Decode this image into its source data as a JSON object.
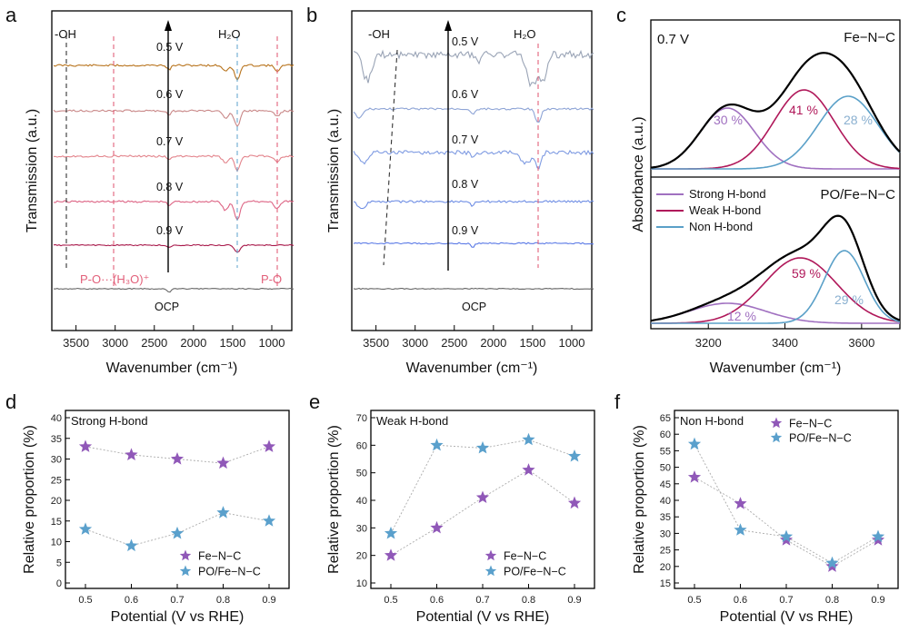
{
  "panel_letters": {
    "a": "a",
    "b": "b",
    "c": "c",
    "d": "d",
    "e": "e",
    "f": "f"
  },
  "panel_a": {
    "xlabel": "Wavenumber (cm⁻¹)",
    "ylabel": "Transmission (a.u.)",
    "xticks": [
      "3500",
      "3000",
      "2500",
      "2000",
      "1500",
      "1000"
    ],
    "band_oh": "-OH",
    "band_h2o": "H₂O",
    "band_po_h3o": "P-O···(H₃O)⁺",
    "band_po": "P-O",
    "potentials": [
      "0.5 V",
      "0.6 V",
      "0.7 V",
      "0.8 V",
      "0.9 V"
    ],
    "ocp": "OCP",
    "colors": {
      "c05": "#b8741e",
      "c06": "#c98888",
      "c07": "#e3848c",
      "c08": "#dd6585",
      "c09": "#a8184a",
      "ocp": "#666666",
      "dashOH": "#333333",
      "dashRed": "#e2607a"
    }
  },
  "panel_b": {
    "xlabel": "Wavenumber (cm⁻¹)",
    "ylabel": "Transmission (a.u.)",
    "xticks": [
      "3500",
      "3000",
      "2500",
      "2000",
      "1500",
      "1000"
    ],
    "band_oh": "-OH",
    "band_h2o": "H₂O",
    "potentials": [
      "0.5 V",
      "0.6 V",
      "0.7 V",
      "0.8 V",
      "0.9 V"
    ],
    "ocp": "OCP",
    "colors": {
      "c05": "#9aa4b6",
      "c06": "#8ea4d6",
      "c07": "#7f9be2",
      "c08": "#6f8ee4",
      "c09": "#5b7ae6",
      "ocp": "#666666"
    }
  },
  "panel_c": {
    "potential": "0.7 V",
    "top_title": "Fe−N−C",
    "bottom_title": "PO/Fe−N−C",
    "ylabel": "Absorbance (a.u.)",
    "xlabel": "Wavenumber (cm⁻¹)",
    "xticks": [
      "3200",
      "3400",
      "3600"
    ],
    "legend": [
      "Strong H-bond",
      "Weak H-bond",
      "Non H-bond"
    ],
    "top_pct": [
      "30 %",
      "41 %",
      "28 %"
    ],
    "bottom_pct": [
      "12 %",
      "59 %",
      "29 %"
    ],
    "colors": {
      "strong": "#a070c0",
      "weak": "#b0185a",
      "non": "#5aa0c8"
    }
  },
  "chart_data": [
    {
      "panel": "d",
      "type": "scatter",
      "title": "Strong H-bond",
      "xlabel": "Potential (V vs RHE)",
      "ylabel": "Relative proportion (%)",
      "categories": [
        "0.5",
        "0.6",
        "0.7",
        "0.8",
        "0.9"
      ],
      "x": [
        0.5,
        0.6,
        0.7,
        0.8,
        0.9
      ],
      "ylim": [
        0,
        40
      ],
      "yticks": [
        0,
        5,
        10,
        15,
        20,
        25,
        30,
        35,
        40
      ],
      "legend_position": "bottom-right",
      "series": [
        {
          "name": "Fe−N−C",
          "color": "#9058b8",
          "values": [
            33,
            31,
            30,
            29,
            33
          ]
        },
        {
          "name": "PO/Fe−N−C",
          "color": "#5aa0cc",
          "values": [
            13,
            9,
            12,
            17,
            15
          ]
        }
      ]
    },
    {
      "panel": "e",
      "type": "scatter",
      "title": "Weak H-bond",
      "xlabel": "Potential (V vs RHE)",
      "ylabel": "Relative proportion (%)",
      "categories": [
        "0.5",
        "0.6",
        "0.7",
        "0.8",
        "0.9"
      ],
      "x": [
        0.5,
        0.6,
        0.7,
        0.8,
        0.9
      ],
      "ylim": [
        10,
        70
      ],
      "yticks": [
        10,
        20,
        30,
        40,
        50,
        60,
        70
      ],
      "legend_position": "bottom-right",
      "series": [
        {
          "name": "Fe−N−C",
          "color": "#9058b8",
          "values": [
            20,
            30,
            41,
            51,
            39
          ]
        },
        {
          "name": "PO/Fe−N−C",
          "color": "#5aa0cc",
          "values": [
            28,
            60,
            59,
            62,
            56
          ]
        }
      ]
    },
    {
      "panel": "f",
      "type": "scatter",
      "title": "Non H-bond",
      "xlabel": "Potential (V vs RHE)",
      "ylabel": "Relative proportion (%)",
      "categories": [
        "0.5",
        "0.6",
        "0.7",
        "0.8",
        "0.9"
      ],
      "x": [
        0.5,
        0.6,
        0.7,
        0.8,
        0.9
      ],
      "ylim": [
        15,
        65
      ],
      "yticks": [
        15,
        20,
        25,
        30,
        35,
        40,
        45,
        50,
        55,
        60,
        65
      ],
      "legend_position": "top-right",
      "series": [
        {
          "name": "Fe−N−C",
          "color": "#9058b8",
          "values": [
            47,
            39,
            28,
            20,
            28
          ]
        },
        {
          "name": "PO/Fe−N−C",
          "color": "#5aa0cc",
          "values": [
            57,
            31,
            29,
            21,
            29
          ]
        }
      ]
    }
  ]
}
